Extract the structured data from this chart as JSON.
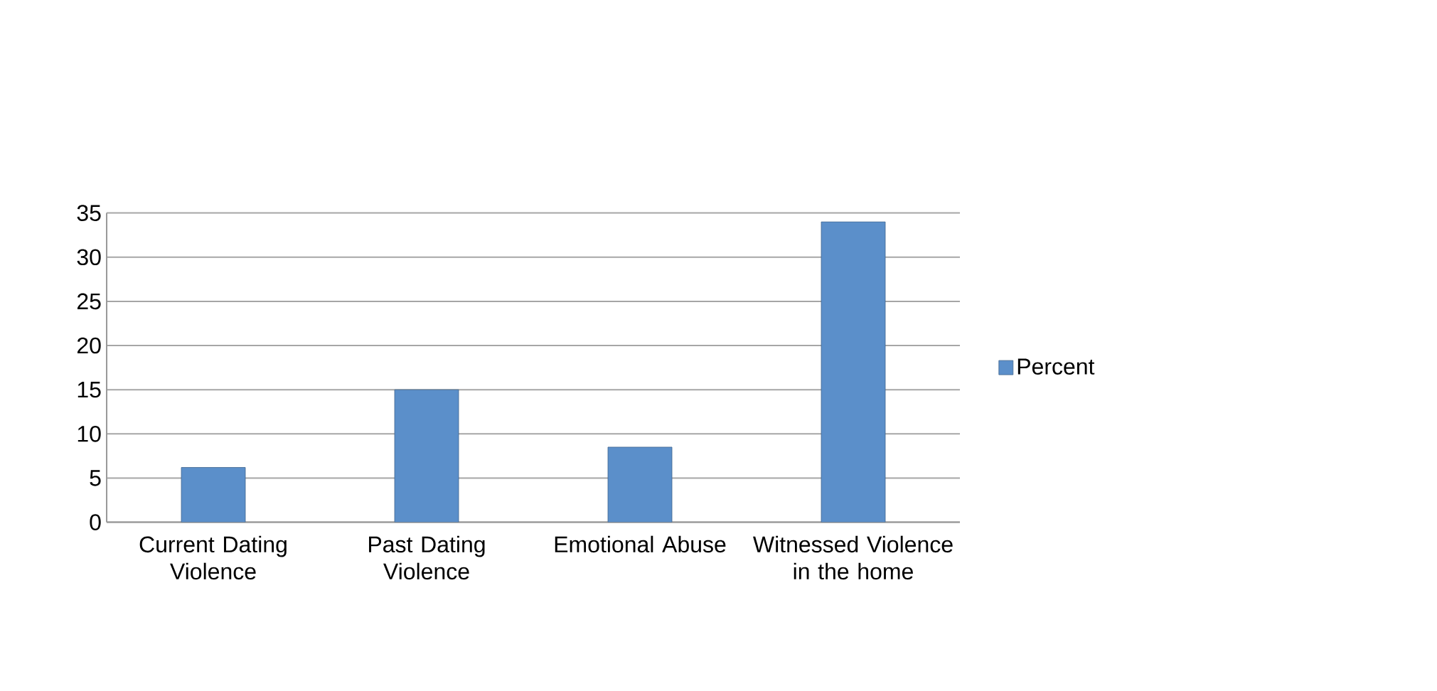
{
  "chart_data": {
    "type": "bar",
    "categories": [
      "Current Dating Violence",
      "Past Dating Violence",
      "Emotional Abuse",
      "Witnessed Violence in the home"
    ],
    "series": [
      {
        "name": "Percent",
        "color": "#5b8fca",
        "values": [
          6.2,
          15,
          8.5,
          34
        ]
      }
    ],
    "ylim": [
      0,
      35
    ],
    "yticks": [
      0,
      5,
      10,
      15,
      20,
      25,
      30,
      35
    ],
    "grid": "y",
    "legend": "right"
  }
}
